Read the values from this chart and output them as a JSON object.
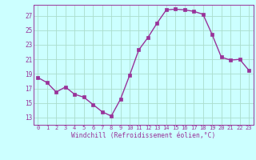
{
  "x": [
    0,
    1,
    2,
    3,
    4,
    5,
    6,
    7,
    8,
    9,
    10,
    11,
    12,
    13,
    14,
    15,
    16,
    17,
    18,
    19,
    20,
    21,
    22,
    23
  ],
  "y": [
    18.5,
    17.8,
    16.5,
    17.2,
    16.2,
    15.8,
    14.8,
    13.8,
    13.2,
    15.5,
    18.8,
    22.3,
    24.0,
    26.0,
    27.8,
    27.9,
    27.8,
    27.6,
    27.2,
    24.4,
    21.3,
    20.9,
    21.0,
    19.5
  ],
  "line_color": "#993399",
  "marker": "s",
  "markersize": 2.2,
  "linewidth": 1.0,
  "background_color": "#ccffff",
  "grid_color": "#aaddcc",
  "xlabel": "Windchill (Refroidissement éolien,°C)",
  "xlabel_color": "#993399",
  "tick_color": "#993399",
  "yticks": [
    13,
    15,
    17,
    19,
    21,
    23,
    25,
    27
  ],
  "ylim": [
    12.0,
    28.5
  ],
  "xlim": [
    -0.5,
    23.5
  ],
  "figsize": [
    3.2,
    2.0
  ],
  "dpi": 100
}
